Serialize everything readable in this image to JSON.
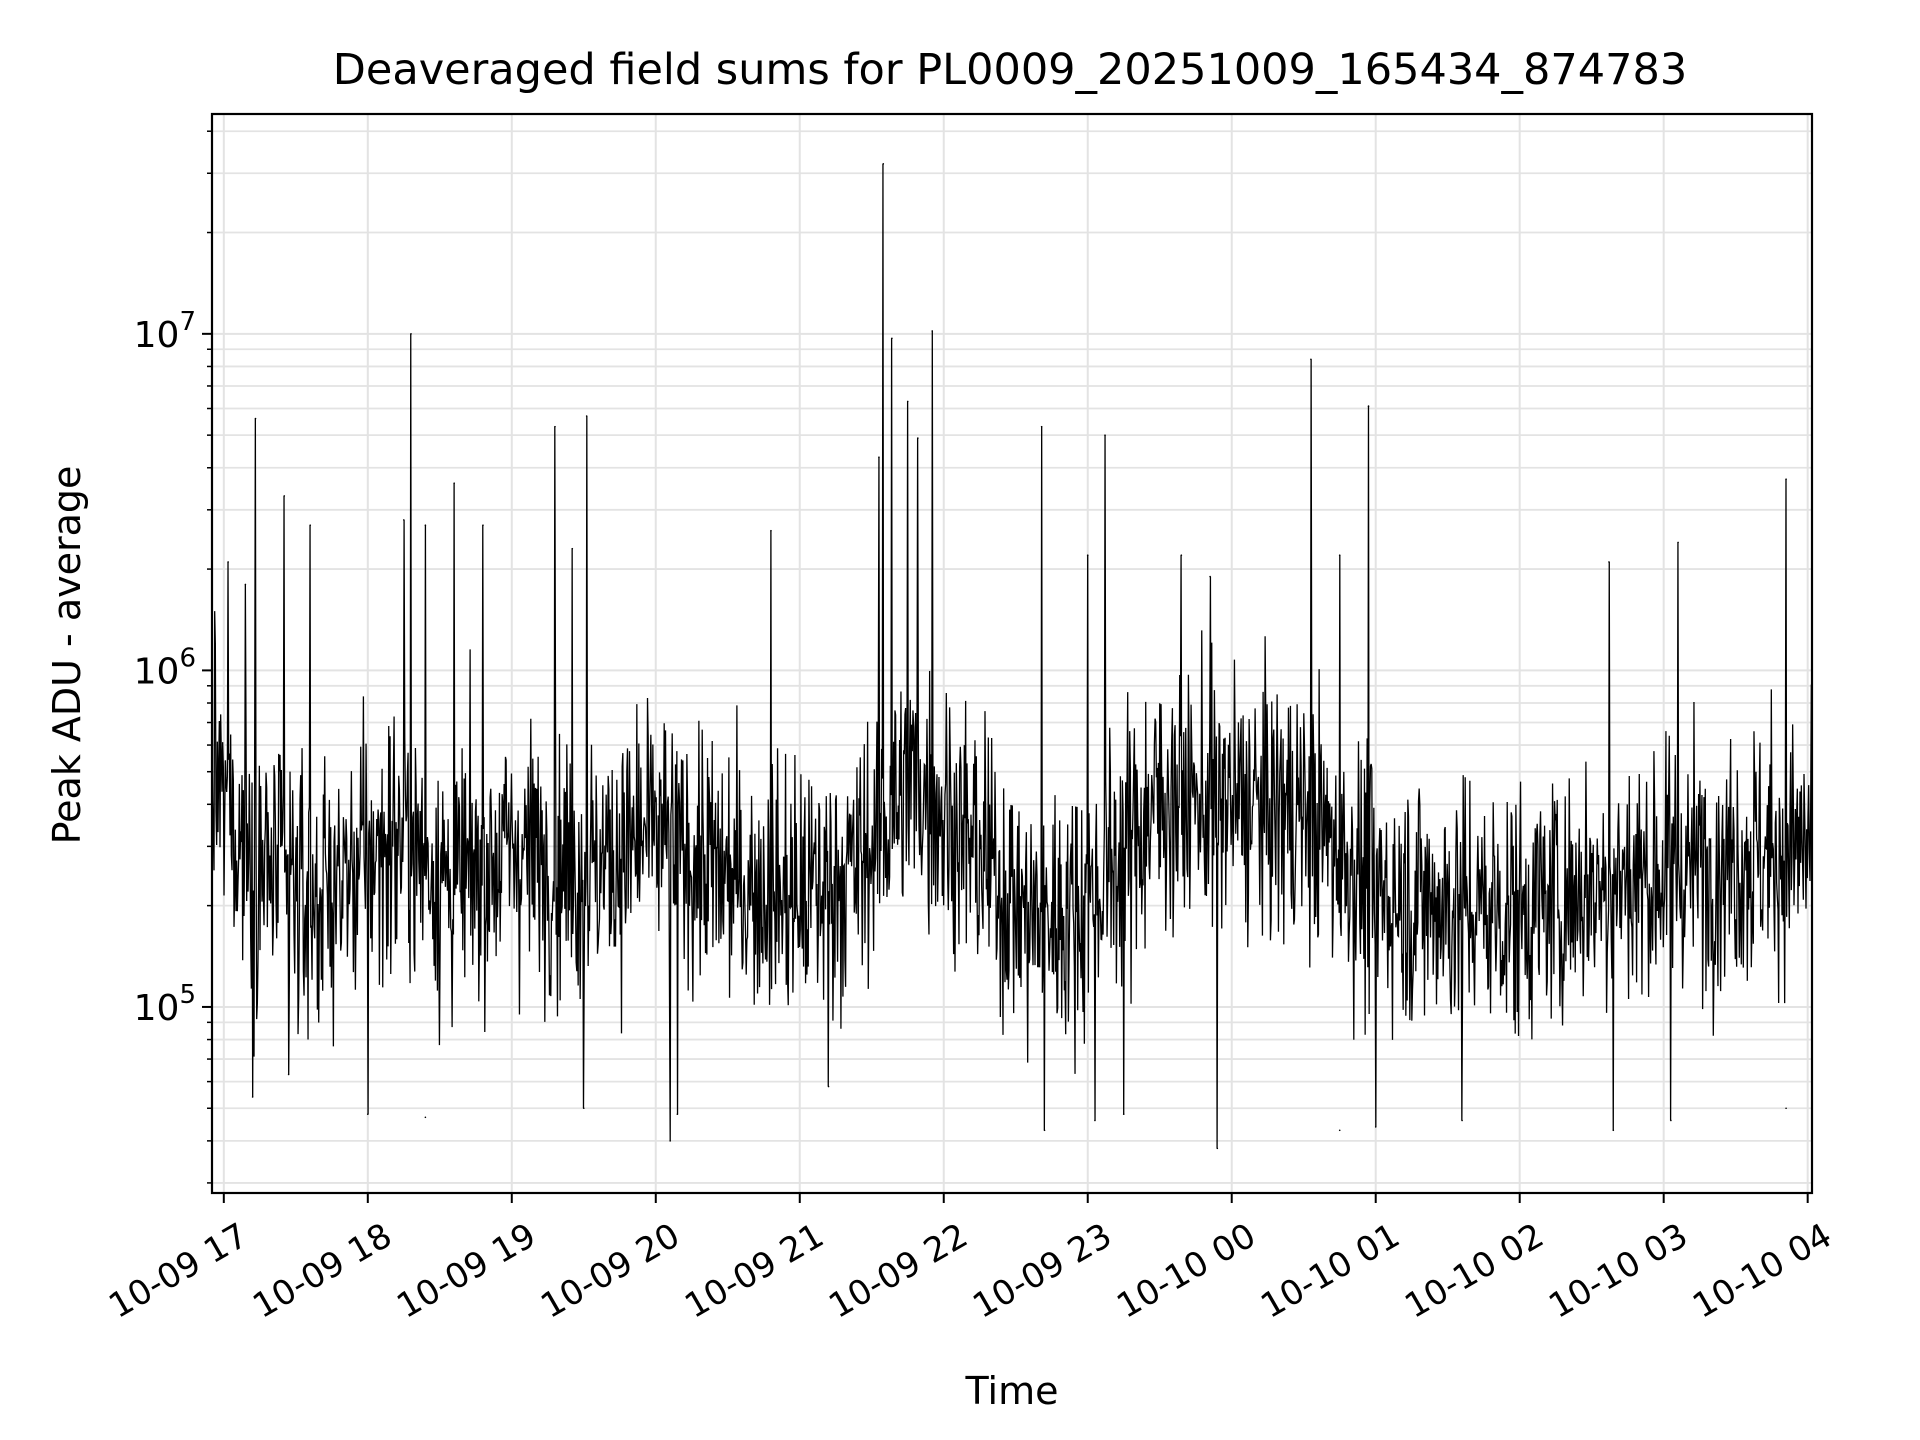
{
  "chart_data": {
    "type": "line",
    "title": "Deaveraged field sums for PL0009_20251009_165434_874783",
    "xlabel": "Time",
    "ylabel": "Peak ADU - average",
    "yscale": "log",
    "ylim": [
      28000,
      45000000
    ],
    "xlim_hours": [
      16.918,
      28.03
    ],
    "grid": true,
    "y_ticks": [
      {
        "base": "10",
        "exp": "5",
        "value": 100000
      },
      {
        "base": "10",
        "exp": "6",
        "value": 1000000
      },
      {
        "base": "10",
        "exp": "7",
        "value": 10000000
      }
    ],
    "x_ticks": [
      {
        "label": "10-09 17",
        "hour": 17
      },
      {
        "label": "10-09 18",
        "hour": 18
      },
      {
        "label": "10-09 19",
        "hour": 19
      },
      {
        "label": "10-09 20",
        "hour": 20
      },
      {
        "label": "10-09 21",
        "hour": 21
      },
      {
        "label": "10-09 22",
        "hour": 22
      },
      {
        "label": "10-09 23",
        "hour": 23
      },
      {
        "label": "10-10 00",
        "hour": 24
      },
      {
        "label": "10-10 01",
        "hour": 25
      },
      {
        "label": "10-10 02",
        "hour": 26
      },
      {
        "label": "10-10 03",
        "hour": 27
      },
      {
        "label": "10-10 04",
        "hour": 28
      }
    ],
    "series": [
      {
        "name": "Peak ADU - average",
        "color": "#000000",
        "baseline_profile": {
          "hours": [
            16.92,
            17.2,
            17.6,
            18.2,
            18.6,
            19.0,
            19.5,
            20.0,
            20.5,
            21.0,
            21.4,
            21.8,
            22.2,
            22.6,
            23.0,
            23.5,
            24.0,
            24.5,
            25.0,
            25.5,
            26.0,
            26.5,
            27.0,
            27.5,
            28.03
          ],
          "median": [
            450000,
            280000,
            200000,
            320000,
            230000,
            300000,
            250000,
            330000,
            240000,
            210000,
            260000,
            480000,
            300000,
            180000,
            200000,
            420000,
            400000,
            380000,
            220000,
            200000,
            190000,
            230000,
            250000,
            280000,
            300000
          ]
        },
        "spikes": [
          {
            "hour": 16.94,
            "value": 1200000
          },
          {
            "hour": 17.03,
            "value": 2100000
          },
          {
            "hour": 17.15,
            "value": 1800000
          },
          {
            "hour": 17.22,
            "value": 5600000
          },
          {
            "hour": 17.42,
            "value": 3300000
          },
          {
            "hour": 17.6,
            "value": 2700000
          },
          {
            "hour": 18.25,
            "value": 2800000
          },
          {
            "hour": 18.3,
            "value": 10000000
          },
          {
            "hour": 18.4,
            "value": 2700000
          },
          {
            "hour": 18.6,
            "value": 3600000
          },
          {
            "hour": 18.8,
            "value": 2700000
          },
          {
            "hour": 19.3,
            "value": 5300000
          },
          {
            "hour": 19.42,
            "value": 2300000
          },
          {
            "hour": 19.52,
            "value": 5700000
          },
          {
            "hour": 20.8,
            "value": 2600000
          },
          {
            "hour": 21.55,
            "value": 4300000
          },
          {
            "hour": 21.58,
            "value": 32000000
          },
          {
            "hour": 21.64,
            "value": 9700000
          },
          {
            "hour": 21.75,
            "value": 6300000
          },
          {
            "hour": 21.82,
            "value": 4900000
          },
          {
            "hour": 21.92,
            "value": 10200000
          },
          {
            "hour": 22.68,
            "value": 5300000
          },
          {
            "hour": 23.0,
            "value": 2200000
          },
          {
            "hour": 23.12,
            "value": 5000000
          },
          {
            "hour": 23.65,
            "value": 2200000
          },
          {
            "hour": 23.85,
            "value": 1900000
          },
          {
            "hour": 24.55,
            "value": 8400000
          },
          {
            "hour": 24.75,
            "value": 2200000
          },
          {
            "hour": 24.95,
            "value": 6100000
          },
          {
            "hour": 26.62,
            "value": 2100000
          },
          {
            "hour": 27.1,
            "value": 2400000
          },
          {
            "hour": 27.85,
            "value": 3700000
          }
        ],
        "dips": [
          {
            "hour": 17.2,
            "value": 54000
          },
          {
            "hour": 17.45,
            "value": 63000
          },
          {
            "hour": 18.0,
            "value": 48000
          },
          {
            "hour": 18.4,
            "value": 47000
          },
          {
            "hour": 19.5,
            "value": 50000
          },
          {
            "hour": 20.1,
            "value": 40000
          },
          {
            "hour": 20.15,
            "value": 48000
          },
          {
            "hour": 21.2,
            "value": 58000
          },
          {
            "hour": 22.7,
            "value": 43000
          },
          {
            "hour": 23.05,
            "value": 46000
          },
          {
            "hour": 23.25,
            "value": 48000
          },
          {
            "hour": 23.9,
            "value": 38000
          },
          {
            "hour": 24.75,
            "value": 43000
          },
          {
            "hour": 25.0,
            "value": 44000
          },
          {
            "hour": 25.6,
            "value": 46000
          },
          {
            "hour": 26.65,
            "value": 43000
          },
          {
            "hour": 27.05,
            "value": 46000
          },
          {
            "hour": 27.85,
            "value": 50000
          }
        ]
      }
    ]
  }
}
